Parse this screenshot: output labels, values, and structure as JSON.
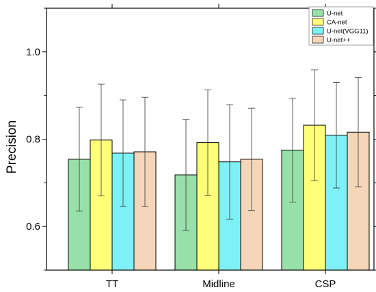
{
  "chart_data": {
    "type": "bar",
    "title": "",
    "xlabel": "",
    "ylabel": "Precision",
    "categories": [
      "TT",
      "Midline",
      "CSP"
    ],
    "ylim": [
      0.5,
      1.1
    ],
    "yticks": [
      "0.6",
      "0.8",
      "1.0"
    ],
    "minor_ticks": true,
    "grid": false,
    "legend_position": "top-right",
    "series": [
      {
        "name": "U-net",
        "color": "#98e0aa",
        "values": [
          0.754,
          0.718,
          0.775
        ],
        "errors": [
          0.119,
          0.127,
          0.119
        ]
      },
      {
        "name": "CA-net",
        "color": "#ffff7a",
        "values": [
          0.798,
          0.792,
          0.832
        ],
        "errors": [
          0.128,
          0.121,
          0.127
        ]
      },
      {
        "name": "U-net(VGG11)",
        "color": "#7df1f5",
        "values": [
          0.768,
          0.748,
          0.809
        ],
        "errors": [
          0.122,
          0.131,
          0.121
        ]
      },
      {
        "name": "U-net++",
        "color": "#f5d6b8",
        "values": [
          0.771,
          0.754,
          0.816
        ],
        "errors": [
          0.125,
          0.117,
          0.125
        ]
      }
    ]
  }
}
